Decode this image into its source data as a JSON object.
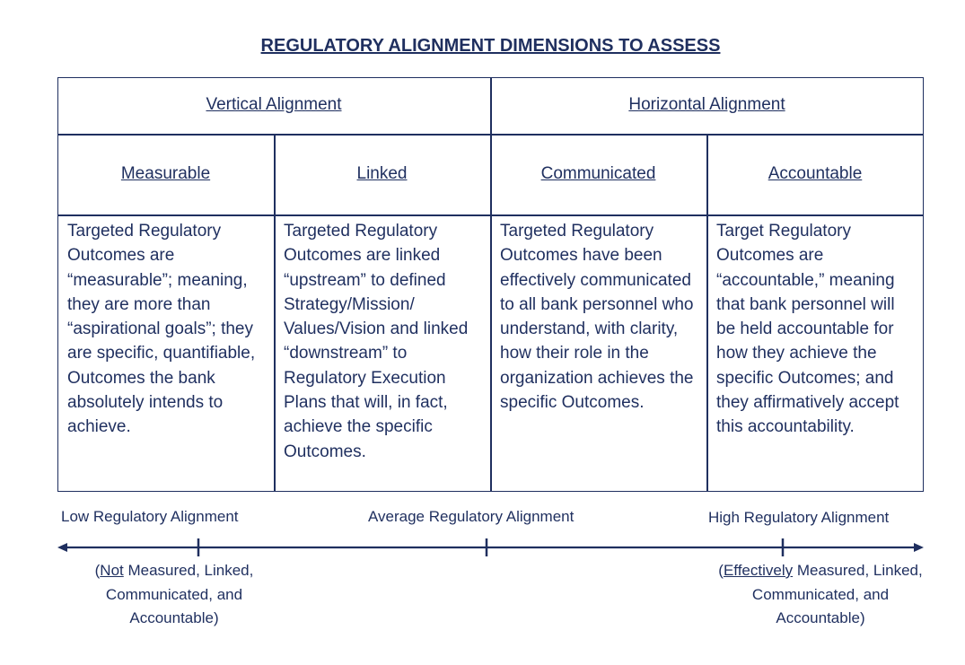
{
  "title": "REGULATORY ALIGNMENT DIMENSIONS TO ASSESS",
  "groups": {
    "vertical": "Vertical Alignment",
    "horizontal": "Horizontal Alignment"
  },
  "dimensions": [
    {
      "name": "Measurable",
      "text": "Targeted Regulatory Outcomes are “measurable”; meaning, they are more than “aspirational goals”; they  are specific, quantifiable, Outcomes the bank absolutely intends to achieve."
    },
    {
      "name": "Linked",
      "text": "Targeted Regulatory Outcomes are linked “upstream” to defined Strategy/Mission/ Values/Vision and linked “downstream” to Regulatory Execution Plans that will, in fact, achieve the specific Outcomes."
    },
    {
      "name": "Communicated",
      "text": "Targeted Regulatory Outcomes have been effectively communicated to all bank personnel who understand, with clarity, how their role in the organization achieves the specific Outcomes."
    },
    {
      "name": "Accountable",
      "text": "Target Regulatory Outcomes are “accountable,” meaning that bank personnel will be held accountable for how they achieve the specific Outcomes; and they affirmatively accept this accountability."
    }
  ],
  "scale": {
    "low": "Low Regulatory Alignment",
    "average": "Average Regulatory Alignment",
    "high": "High Regulatory Alignment"
  },
  "notes": {
    "low_prefix": "(",
    "low_emph": "Not",
    "low_rest": " Measured, Linked, Communicated, and Accountable)",
    "high_prefix": "(",
    "high_emph": "Effectively",
    "high_rest": " Measured, Linked, Communicated, and Accountable)"
  },
  "colors": {
    "ink": "#1f2f5f"
  }
}
